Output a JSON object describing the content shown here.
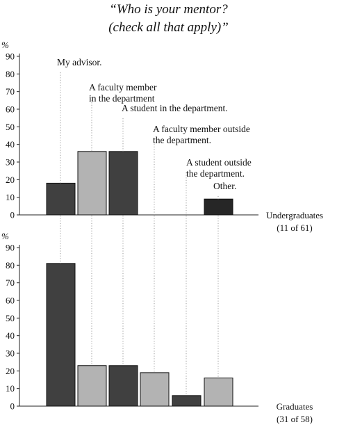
{
  "title_lines": [
    "“Who is your mentor?",
    "(check all that apply)”"
  ],
  "colors": {
    "dark": "#404040",
    "light": "#b3b3b3",
    "darkest": "#262626",
    "axis": "#222222",
    "guide": "#999999"
  },
  "chart_data": [
    {
      "type": "bar",
      "categories": [
        "My advisor.",
        "A faculty member in the department",
        "A student in the department.",
        "A faculty member outside the department.",
        "A student outside the department.",
        "Other."
      ],
      "category_label_lines": [
        [
          "My advisor."
        ],
        [
          "A faculty member",
          "in the department"
        ],
        [
          "A student in the department."
        ],
        [
          "A faculty member outside",
          "the department."
        ],
        [
          "A student outside",
          "the department."
        ],
        [
          "Other."
        ]
      ],
      "values": [
        18,
        36,
        36,
        0,
        0,
        9
      ],
      "ylabel": "%",
      "ylim": [
        0,
        90
      ],
      "yticks": [
        0,
        10,
        20,
        30,
        40,
        50,
        60,
        70,
        80,
        90
      ],
      "group_label": [
        "Undergraduates",
        "(11 of 61)"
      ],
      "bar_colors": [
        "dark",
        "light",
        "dark",
        "light",
        "dark",
        "darkest"
      ]
    },
    {
      "type": "bar",
      "categories": [
        "My advisor.",
        "A faculty member in the department",
        "A student in the department.",
        "A faculty member outside the department.",
        "A student outside the department.",
        "Other."
      ],
      "values": [
        81,
        23,
        23,
        19,
        6,
        16
      ],
      "ylabel": "%",
      "ylim": [
        0,
        90
      ],
      "yticks": [
        0,
        10,
        20,
        30,
        40,
        50,
        60,
        70,
        80,
        90
      ],
      "group_label": [
        "Graduates",
        "(31 of 58)"
      ],
      "bar_colors": [
        "dark",
        "light",
        "dark",
        "light",
        "dark",
        "light"
      ]
    }
  ]
}
